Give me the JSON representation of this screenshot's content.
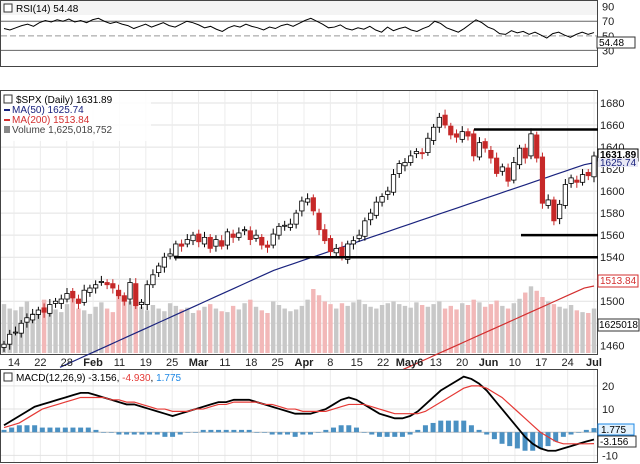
{
  "chart_data": [
    {
      "panel": "rsi",
      "type": "line",
      "label": "RSI(14)",
      "last_value": "54.48",
      "y_ticks": [
        "90",
        "70",
        "50",
        "30"
      ],
      "ylim": [
        10,
        95
      ],
      "reference_lines": [
        70,
        50,
        30
      ],
      "series": [
        {
          "values": [
            60,
            58,
            61,
            64,
            66,
            63,
            68,
            71,
            69,
            72,
            70,
            73,
            69,
            71,
            68,
            72,
            74,
            70,
            67,
            69,
            66,
            64,
            60,
            63,
            66,
            62,
            65,
            68,
            64,
            62,
            66,
            70,
            68,
            65,
            61,
            63,
            59,
            56,
            61,
            64,
            62,
            66,
            63,
            61,
            58,
            62,
            60,
            64,
            66,
            63,
            67,
            71,
            74,
            70,
            66,
            61,
            62,
            65,
            60,
            58,
            61,
            59,
            63,
            58,
            55,
            62,
            57,
            60,
            62,
            58,
            56,
            60,
            63,
            70,
            67,
            61,
            58,
            55,
            60,
            66,
            72,
            68,
            62,
            59,
            53,
            52,
            57,
            54,
            56,
            52,
            55,
            51,
            47,
            53,
            55,
            51,
            48,
            52,
            55,
            52,
            54.48
          ]
        }
      ]
    },
    {
      "panel": "price",
      "type": "candlestick",
      "title": "$SPX (Daily) 1631.89",
      "last_value": "1631.89",
      "y_ticks": [
        "1680",
        "1660",
        "1640",
        "1620",
        "1600",
        "1580",
        "1560",
        "1540",
        "1520",
        "1500",
        "1480",
        "1460"
      ],
      "ylim": [
        1453,
        1690
      ],
      "x_labels": [
        "14",
        "22",
        "28",
        "Feb",
        "11",
        "19",
        "25",
        "Mar",
        "11",
        "18",
        "25",
        "Apr",
        "8",
        "15",
        "22",
        "May6",
        "13",
        "20",
        "Jun",
        "10",
        "17",
        "24",
        "Jul"
      ],
      "x_label_bold": [
        "Feb",
        "Mar",
        "Apr",
        "May6",
        "Jun",
        "Jul"
      ],
      "legend": [
        {
          "label": "$SPX (Daily) 1631.89",
          "color": "#000000"
        },
        {
          "label": "MA(50) 1625.74",
          "color": "#1a237e"
        },
        {
          "label": "MA(200) 1513.84",
          "color": "#d32f2f"
        },
        {
          "label": "Volume 1,625,018,752",
          "color": "#555555"
        }
      ],
      "right_value_tags": [
        "1631.89",
        "1625.74",
        "1513.84",
        "1625018"
      ],
      "close": [
        1461,
        1470,
        1472,
        1480,
        1485,
        1488,
        1492,
        1490,
        1497,
        1500,
        1502,
        1507,
        1503,
        1498,
        1510,
        1512,
        1515,
        1518,
        1515,
        1512,
        1505,
        1500,
        1517,
        1496,
        1499,
        1515,
        1524,
        1532,
        1540,
        1543,
        1552,
        1550,
        1556,
        1560,
        1554,
        1558,
        1548,
        1556,
        1550,
        1563,
        1558,
        1562,
        1565,
        1556,
        1560,
        1551,
        1549,
        1561,
        1568,
        1569,
        1570,
        1580,
        1591,
        1593,
        1582,
        1565,
        1555,
        1545,
        1548,
        1540,
        1552,
        1555,
        1560,
        1573,
        1580,
        1590,
        1595,
        1600,
        1615,
        1625,
        1626,
        1632,
        1636,
        1634,
        1648,
        1658,
        1667,
        1660,
        1651,
        1649,
        1654,
        1650,
        1632,
        1644,
        1639,
        1630,
        1616,
        1622,
        1609,
        1626,
        1639,
        1630,
        1652,
        1630,
        1589,
        1592,
        1573,
        1588,
        1606,
        1612,
        1608,
        1615,
        1614,
        1631.89
      ],
      "volume": [
        55,
        50,
        48,
        52,
        58,
        45,
        47,
        60,
        53,
        49,
        46,
        55,
        62,
        50,
        48,
        44,
        52,
        57,
        50,
        46,
        70,
        65,
        58,
        60,
        52,
        48,
        54,
        50,
        47,
        56,
        53,
        49,
        51,
        45,
        48,
        52,
        55,
        50,
        47,
        46,
        53,
        49,
        56,
        60,
        52,
        48,
        45,
        58,
        54,
        50,
        47,
        49,
        53,
        60,
        72,
        65,
        58,
        55,
        50,
        56,
        53,
        57,
        60,
        55,
        52,
        50,
        54,
        56,
        58,
        55,
        53,
        51,
        57,
        54,
        52,
        55,
        58,
        50,
        53,
        49,
        56,
        54,
        60,
        57,
        52,
        55,
        59,
        53,
        50,
        56,
        61,
        68,
        75,
        70,
        63,
        58,
        55,
        52,
        50,
        54,
        48,
        46,
        45,
        50
      ],
      "ma50": [
        1440,
        1444,
        1448,
        1452,
        1456,
        1460,
        1464,
        1468,
        1472,
        1476,
        1480,
        1484,
        1488,
        1492,
        1496,
        1500,
        1504,
        1508,
        1512,
        1516,
        1520,
        1524,
        1528,
        1531,
        1534,
        1537,
        1540,
        1543,
        1546,
        1549,
        1552,
        1555,
        1558,
        1561,
        1564,
        1567,
        1570,
        1573,
        1576,
        1579,
        1582,
        1585,
        1588,
        1591,
        1594,
        1597,
        1600,
        1603,
        1606,
        1609,
        1612,
        1615,
        1618,
        1621,
        1624,
        1625.74
      ],
      "ma200": [
        1400,
        1404,
        1408,
        1412,
        1416,
        1420,
        1424,
        1428,
        1432,
        1436,
        1440,
        1444,
        1448,
        1452,
        1456,
        1460,
        1464,
        1468,
        1472,
        1476,
        1480,
        1484,
        1488,
        1492,
        1496,
        1500,
        1504,
        1508,
        1512,
        1513.84
      ],
      "horizontal_levels": [
        1656,
        1560,
        1540
      ]
    },
    {
      "panel": "macd",
      "type": "line",
      "label": "MACD(12,26,9)",
      "macd_value": "-3.156",
      "signal_value": "-4.930",
      "hist_value": "1.775",
      "y_ticks": [
        "20",
        "10",
        "0",
        "-10"
      ],
      "ylim": [
        -12,
        26
      ],
      "series": [
        {
          "name": "MACD",
          "color": "#000000",
          "values": [
            3,
            5,
            7,
            9,
            11,
            12,
            13,
            14,
            15,
            16,
            17,
            17,
            16,
            15,
            14,
            13,
            12,
            12,
            11,
            10,
            9,
            8,
            7,
            8,
            9,
            10,
            11,
            12,
            13,
            13,
            14,
            14,
            14,
            13,
            12,
            11,
            10,
            9,
            8,
            8,
            8,
            9,
            10,
            12,
            14,
            15,
            14,
            12,
            10,
            8,
            7,
            6,
            6,
            7,
            9,
            12,
            15,
            18,
            20,
            22,
            24,
            23,
            21,
            18,
            14,
            10,
            6,
            2,
            -2,
            -5,
            -7,
            -8,
            -8,
            -7,
            -6,
            -5,
            -4,
            -3.156
          ]
        },
        {
          "name": "Signal",
          "color": "#e53935",
          "values": [
            2,
            3,
            4,
            6,
            8,
            10,
            11,
            12,
            13,
            14,
            15,
            15,
            15,
            15,
            14,
            14,
            13,
            13,
            12,
            11,
            10,
            10,
            9,
            9,
            9,
            10,
            10,
            11,
            12,
            12,
            13,
            13,
            13,
            13,
            12,
            12,
            11,
            10,
            10,
            9,
            9,
            9,
            9,
            10,
            11,
            12,
            12,
            12,
            11,
            10,
            9,
            8,
            8,
            8,
            8,
            9,
            11,
            13,
            15,
            17,
            19,
            20,
            20,
            19,
            17,
            15,
            12,
            9,
            6,
            3,
            0,
            -2,
            -4,
            -5,
            -5,
            -5,
            -5,
            -4.93
          ]
        }
      ],
      "histogram": [
        1,
        2,
        3,
        3,
        3,
        2,
        2,
        2,
        2,
        2,
        2,
        2,
        1,
        0,
        0,
        -1,
        -1,
        -1,
        -1,
        -1,
        -1,
        -2,
        -2,
        -1,
        0,
        0,
        1,
        1,
        1,
        1,
        1,
        1,
        1,
        0,
        0,
        -1,
        -1,
        -1,
        -2,
        -1,
        -1,
        0,
        1,
        2,
        3,
        3,
        2,
        0,
        -1,
        -2,
        -2,
        -2,
        -2,
        -1,
        1,
        3,
        4,
        5,
        5,
        5,
        5,
        3,
        1,
        -1,
        -3,
        -5,
        -6,
        -7,
        -8,
        -8,
        -7,
        -6,
        -4,
        -2,
        -1,
        0,
        1,
        1.775
      ]
    }
  ]
}
